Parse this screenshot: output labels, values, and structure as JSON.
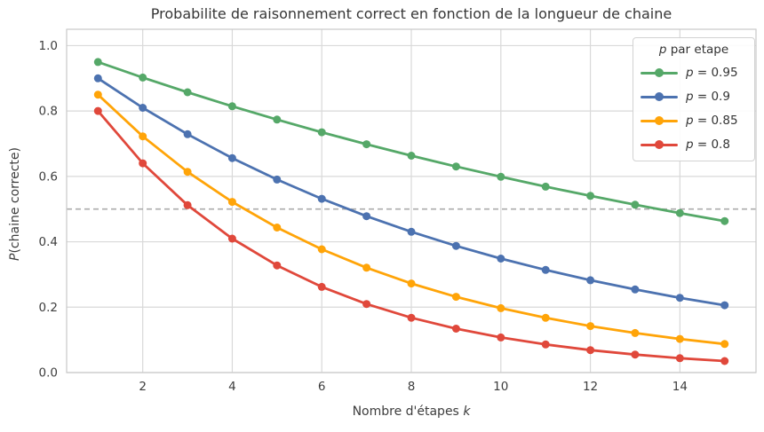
{
  "chart_data": {
    "type": "line",
    "title": "Probabilite de raisonnement correct en fonction de la longueur de chaine",
    "xlabel": "Nombre d'étapes k",
    "ylabel": "P(chaine correcte)",
    "x": [
      1,
      2,
      3,
      4,
      5,
      6,
      7,
      8,
      9,
      10,
      11,
      12,
      13,
      14,
      15
    ],
    "series": [
      {
        "name": "p = 0.95",
        "color": "#55a868",
        "values": [
          0.95,
          0.9025,
          0.8574,
          0.8145,
          0.7738,
          0.7351,
          0.6983,
          0.6634,
          0.6302,
          0.5987,
          0.5688,
          0.5404,
          0.5133,
          0.4877,
          0.4633
        ]
      },
      {
        "name": "p = 0.9",
        "color": "#4c72b0",
        "values": [
          0.9,
          0.81,
          0.729,
          0.6561,
          0.5905,
          0.5314,
          0.4783,
          0.4305,
          0.3874,
          0.3487,
          0.3138,
          0.2824,
          0.2542,
          0.2288,
          0.2059
        ]
      },
      {
        "name": "p = 0.85",
        "color": "#ffa408",
        "values": [
          0.85,
          0.7225,
          0.6141,
          0.522,
          0.4437,
          0.3771,
          0.3206,
          0.2725,
          0.2316,
          0.1969,
          0.1673,
          0.1422,
          0.1209,
          0.1028,
          0.0874
        ]
      },
      {
        "name": "p = 0.8",
        "color": "#e0483b",
        "values": [
          0.8,
          0.64,
          0.512,
          0.4096,
          0.3277,
          0.2621,
          0.2097,
          0.1678,
          0.1342,
          0.1074,
          0.0859,
          0.0687,
          0.055,
          0.044,
          0.0352
        ]
      }
    ],
    "hline": {
      "y": 0.5,
      "style": "dashed",
      "color": "#ababab"
    },
    "xlim": [
      0.3,
      15.7
    ],
    "ylim": [
      0,
      1.05
    ],
    "xticks": [
      2,
      4,
      6,
      8,
      10,
      12,
      14
    ],
    "yticks": [
      0.0,
      0.2,
      0.4,
      0.6,
      0.8,
      1.0
    ],
    "grid": true,
    "legend": {
      "position": "upper right",
      "title": "p par etape"
    },
    "colors": {
      "grid": "#d9d9d9",
      "spine": "#c9c9c9",
      "tick_text": "#3d3d3d"
    }
  },
  "labels": {
    "title": "Probabilite de raisonnement correct en fonction de la longueur de chaine",
    "xlabel_text": "Nombre d'étapes ",
    "xlabel_var": "k",
    "ylabel_var": "P",
    "ylabel_text": "(chaine correcte)",
    "legend_title_var": "p",
    "legend_title_text": " par etape",
    "legend_entries": [
      {
        "var": "p",
        "eq": " = 0.95"
      },
      {
        "var": "p",
        "eq": " = 0.9"
      },
      {
        "var": "p",
        "eq": " = 0.85"
      },
      {
        "var": "p",
        "eq": " = 0.8"
      }
    ]
  }
}
